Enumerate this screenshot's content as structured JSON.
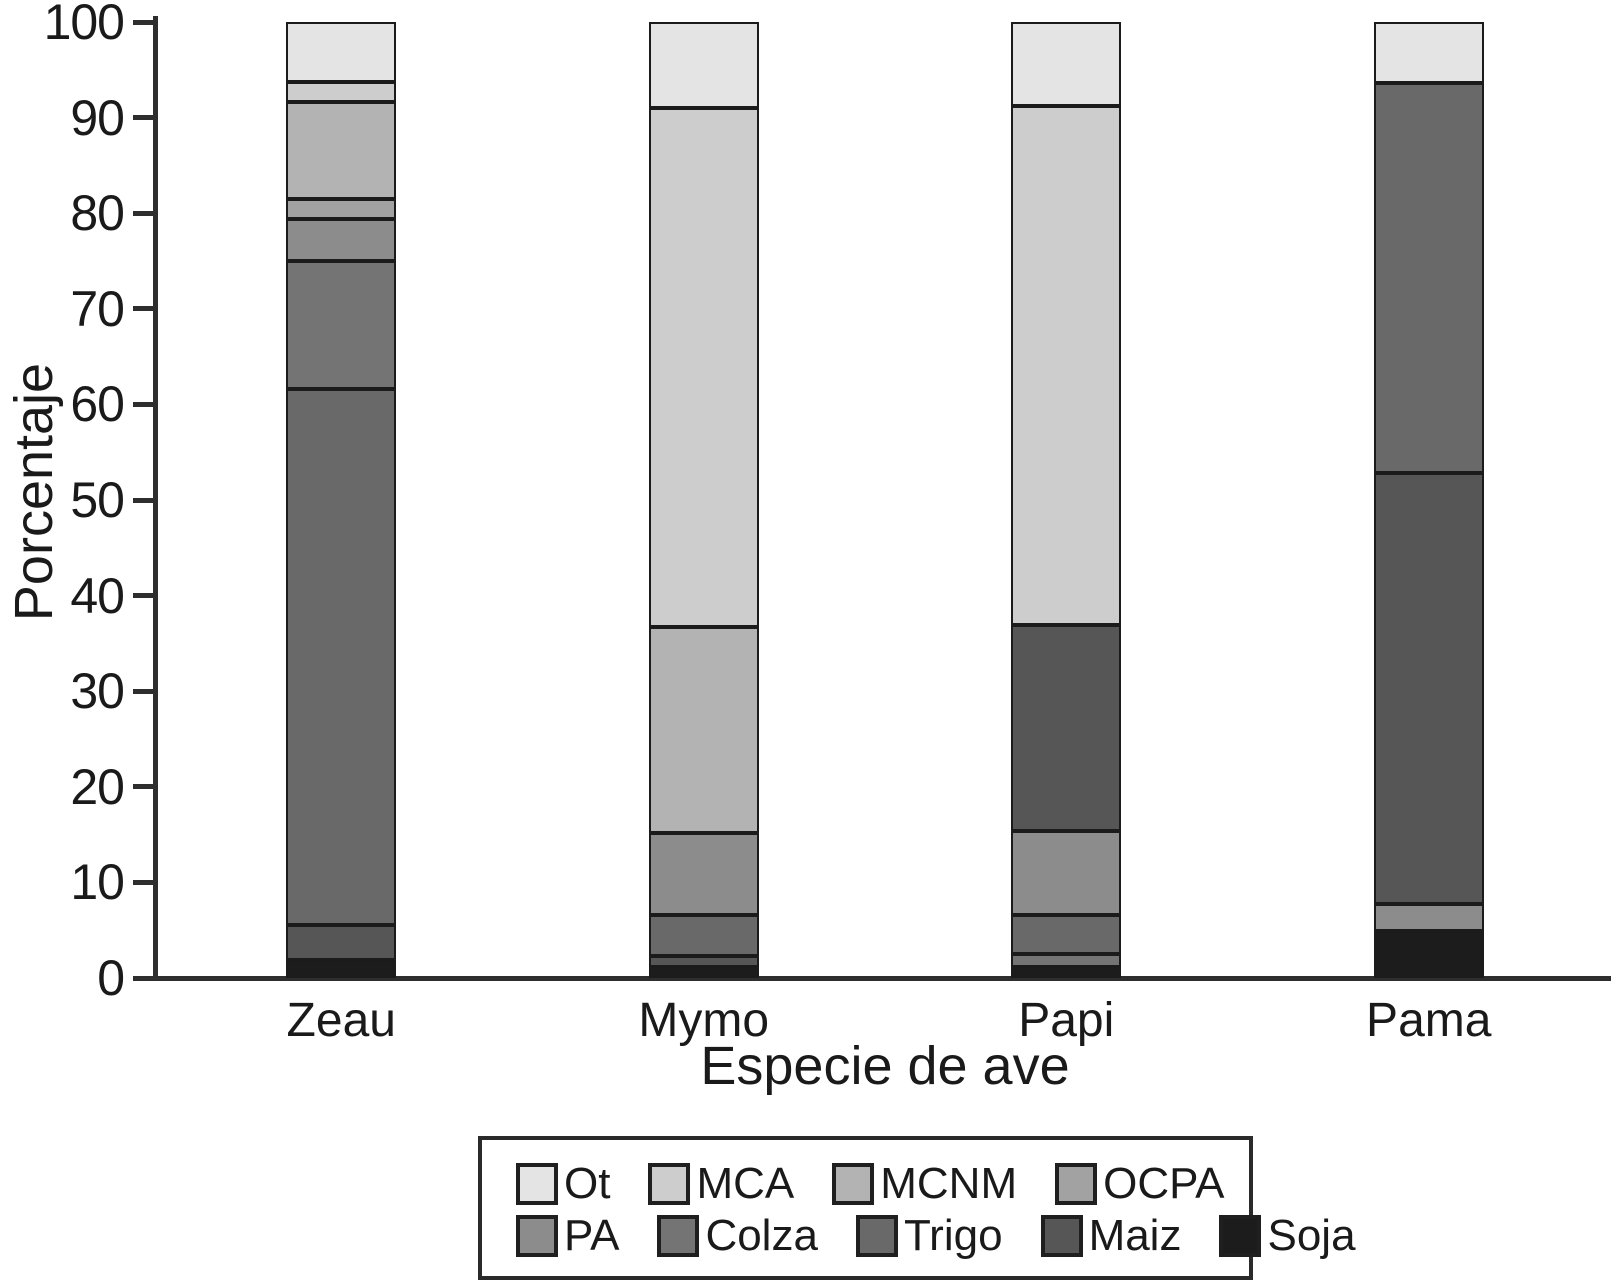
{
  "chart_data": {
    "type": "bar",
    "stacked": true,
    "orientation": "vertical",
    "title": "",
    "xlabel": "Especie de ave",
    "ylabel": "Porcentaje",
    "categories": [
      "Zeau",
      "Mymo",
      "Papi",
      "Pama"
    ],
    "ylim": [
      0,
      100
    ],
    "yticks": [
      0,
      10,
      20,
      30,
      40,
      50,
      60,
      70,
      80,
      90,
      100
    ],
    "grid": false,
    "legend_position": "below-chart",
    "legend_rows": [
      [
        "Ot",
        "MCA",
        "MCNM",
        "OCPA"
      ],
      [
        "PA",
        "Colza",
        "Trigo",
        "Maiz",
        "Soja"
      ]
    ],
    "colors": {
      "Ot": "#e4e4e4",
      "MCA": "#cdcdcd",
      "MCNM": "#b3b3b3",
      "OCPA": "#a2a2a2",
      "PA": "#8c8c8c",
      "Colza": "#747474",
      "Trigo": "#696969",
      "Maiz": "#565656",
      "Soja": "#1c1c1c"
    },
    "series": [
      {
        "name": "Ot",
        "values": [
          6.3,
          9.0,
          8.8,
          6.4
        ]
      },
      {
        "name": "MCA",
        "values": [
          2.1,
          54.3,
          54.3,
          0
        ]
      },
      {
        "name": "MCNM",
        "values": [
          10.1,
          21.5,
          0,
          0
        ]
      },
      {
        "name": "OCPA",
        "values": [
          2.1,
          0,
          0,
          0
        ]
      },
      {
        "name": "PA",
        "values": [
          4.4,
          8.6,
          8.8,
          2.8
        ]
      },
      {
        "name": "Colza",
        "values": [
          13.4,
          0,
          1.3,
          0
        ]
      },
      {
        "name": "Trigo",
        "values": [
          56.1,
          4.3,
          4.1,
          40.8
        ]
      },
      {
        "name": "Maiz",
        "values": [
          3.6,
          1.1,
          21.5,
          45.1
        ]
      },
      {
        "name": "Soja",
        "values": [
          1.9,
          1.2,
          1.2,
          4.9
        ]
      }
    ],
    "bars": [
      {
        "label": "Zeau",
        "segments_bottom_to_top": [
          {
            "category": "Soja",
            "value": 1.9
          },
          {
            "category": "Maiz",
            "value": 3.6
          },
          {
            "category": "Trigo",
            "value": 56.1
          },
          {
            "category": "Colza",
            "value": 13.4
          },
          {
            "category": "PA",
            "value": 4.4
          },
          {
            "category": "OCPA",
            "value": 2.1
          },
          {
            "category": "MCNM",
            "value": 10.1
          },
          {
            "category": "MCA",
            "value": 2.1
          },
          {
            "category": "Ot",
            "value": 6.3
          }
        ]
      },
      {
        "label": "Mymo",
        "segments_bottom_to_top": [
          {
            "category": "Soja",
            "value": 1.2
          },
          {
            "category": "Maiz",
            "value": 1.1
          },
          {
            "category": "Trigo",
            "value": 4.3
          },
          {
            "category": "PA",
            "value": 8.6
          },
          {
            "category": "MCNM",
            "value": 21.5
          },
          {
            "category": "MCA",
            "value": 54.3
          },
          {
            "category": "Ot",
            "value": 9.0
          }
        ]
      },
      {
        "label": "Papi",
        "segments_bottom_to_top": [
          {
            "category": "Soja",
            "value": 1.2
          },
          {
            "category": "Colza",
            "value": 1.3
          },
          {
            "category": "Trigo",
            "value": 4.1
          },
          {
            "category": "PA",
            "value": 8.8
          },
          {
            "category": "Maiz",
            "value": 21.5
          },
          {
            "category": "MCA",
            "value": 54.3
          },
          {
            "category": "Ot",
            "value": 8.8
          }
        ]
      },
      {
        "label": "Pama",
        "segments_bottom_to_top": [
          {
            "category": "Soja",
            "value": 4.9
          },
          {
            "category": "PA",
            "value": 2.8
          },
          {
            "category": "Maiz",
            "value": 45.1
          },
          {
            "category": "Trigo",
            "value": 40.8
          },
          {
            "category": "Ot",
            "value": 6.4
          }
        ]
      }
    ]
  }
}
